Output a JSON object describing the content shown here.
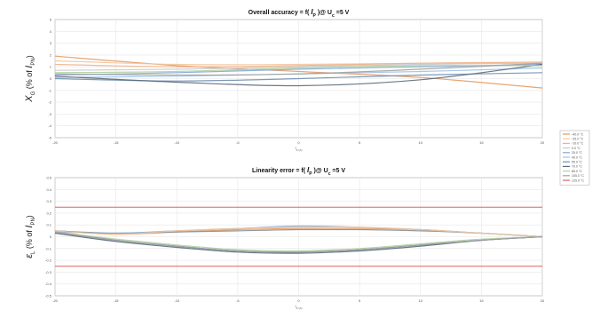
{
  "chart_data": [
    {
      "type": "line",
      "title": "Overall accuracy = f( I_P )@ U_c =5 V",
      "title_parts": {
        "pre": "Overall accuracy = f( ",
        "sym": "I",
        "sub": "P",
        "mid": " )@ U",
        "sub2": "c",
        "post": " =5 V"
      },
      "ylabel": {
        "sym": "X",
        "sub": "G",
        "text": " (% of ",
        "sym2": "I",
        "sub2": "PN",
        "close": ")"
      },
      "xlabel": "I_P (A)",
      "xlim": [
        -20,
        20
      ],
      "ylim": [
        -5,
        5
      ],
      "xticks": [
        -20,
        -15,
        -10,
        -5,
        0,
        5,
        10,
        15,
        20
      ],
      "yticks": [
        -5,
        -4,
        -3,
        -2,
        -1,
        0,
        1,
        2,
        3,
        4,
        5
      ],
      "grid": true,
      "x": [
        -20,
        -10,
        0,
        10,
        20
      ],
      "series": [
        {
          "color": "#e39b62",
          "values": [
            1.9,
            1.1,
            0.6,
            0.1,
            -0.8
          ]
        },
        {
          "color": "#f2c79e",
          "values": [
            1.5,
            1.2,
            1.2,
            1.3,
            1.3
          ]
        },
        {
          "color": "#f0b08a",
          "values": [
            1.2,
            1.0,
            1.1,
            1.3,
            1.4
          ]
        },
        {
          "color": "#c9c9c9",
          "values": [
            0.7,
            0.8,
            1.0,
            1.2,
            1.3
          ]
        },
        {
          "color": "#7fa8d8",
          "values": [
            0.3,
            0.5,
            0.8,
            1.0,
            1.2
          ]
        },
        {
          "color": "#9fc2e8",
          "values": [
            0.1,
            0.2,
            0.4,
            0.6,
            0.9
          ]
        },
        {
          "color": "#6f8fb0",
          "values": [
            0.0,
            -0.2,
            0.0,
            0.3,
            0.5
          ]
        },
        {
          "color": "#5a6a7a",
          "values": [
            0.2,
            -0.3,
            -0.6,
            -0.1,
            1.2
          ]
        },
        {
          "color": "#b0cfa0",
          "values": [
            0.5,
            0.6,
            0.9,
            1.1,
            1.1
          ]
        },
        {
          "color": "#a0a0a0",
          "values": [
            0.4,
            0.3,
            0.4,
            0.8,
            1.3
          ]
        }
      ]
    },
    {
      "type": "line",
      "title": "Linearity error = f( I_P )@ U_c =5 V",
      "title_parts": {
        "pre": "Linearity error = f( ",
        "sym": "I",
        "sub": "P",
        "mid": " )@ U",
        "sub2": "c",
        "post": " =5 V"
      },
      "ylabel": {
        "sym": "ε",
        "sub": "L",
        "text": " (% of ",
        "sym2": "I",
        "sub2": "PN",
        "close": ")"
      },
      "xlabel": "I_P (A)",
      "xlim": [
        -20,
        20
      ],
      "ylim": [
        -0.5,
        0.5
      ],
      "xticks": [
        -20,
        -15,
        -10,
        -5,
        0,
        5,
        10,
        15,
        20
      ],
      "yticks": [
        -0.5,
        -0.4,
        -0.3,
        -0.2,
        -0.1,
        0,
        0.1,
        0.2,
        0.3,
        0.4,
        0.5
      ],
      "grid": true,
      "x": [
        -20,
        -15,
        -10,
        -5,
        0,
        5,
        10,
        15,
        20
      ],
      "limits": {
        "color": "#e06060",
        "values": [
          0.25,
          -0.25
        ]
      },
      "series": [
        {
          "color": "#e39b62",
          "values": [
            0.05,
            0.02,
            0.04,
            0.06,
            0.07,
            0.07,
            0.06,
            0.03,
            0.0
          ]
        },
        {
          "color": "#8c8c8c",
          "values": [
            0.05,
            0.03,
            0.04,
            0.05,
            0.06,
            0.06,
            0.05,
            0.03,
            0.0
          ]
        },
        {
          "color": "#6f8fb0",
          "values": [
            0.04,
            -0.03,
            -0.08,
            -0.12,
            -0.13,
            -0.11,
            -0.07,
            -0.03,
            0.0
          ]
        },
        {
          "color": "#7fa8d8",
          "values": [
            0.04,
            0.03,
            0.05,
            0.07,
            0.09,
            0.08,
            0.06,
            0.03,
            0.0
          ]
        },
        {
          "color": "#5a6a7a",
          "values": [
            0.03,
            -0.04,
            -0.09,
            -0.13,
            -0.14,
            -0.12,
            -0.08,
            -0.03,
            0.0
          ]
        },
        {
          "color": "#f2c79e",
          "values": [
            0.05,
            0.02,
            0.05,
            0.07,
            0.08,
            0.08,
            0.06,
            0.03,
            0.0
          ]
        },
        {
          "color": "#b0cfa0",
          "values": [
            0.04,
            -0.02,
            -0.07,
            -0.11,
            -0.12,
            -0.1,
            -0.06,
            -0.02,
            0.0
          ]
        },
        {
          "color": "#a0a0a0",
          "values": [
            0.04,
            -0.03,
            -0.08,
            -0.12,
            -0.13,
            -0.11,
            -0.07,
            -0.03,
            0.0
          ]
        }
      ]
    }
  ],
  "legend": {
    "placement": "right",
    "entries": [
      {
        "label": "-40.0 °C",
        "color": "#e39b62"
      },
      {
        "label": "-25.0 °C",
        "color": "#f2c79e"
      },
      {
        "label": "-10.0 °C",
        "color": "#f0b08a"
      },
      {
        "label": "0.0 °C",
        "color": "#c9c9c9"
      },
      {
        "label": "25.0 °C",
        "color": "#7fa8d8"
      },
      {
        "label": "40.0 °C",
        "color": "#9fc2e8"
      },
      {
        "label": "55.0 °C",
        "color": "#6f8fb0"
      },
      {
        "label": "70.0 °C",
        "color": "#5a6a7a"
      },
      {
        "label": "85.0 °C",
        "color": "#b0cfa0"
      },
      {
        "label": "105.0 °C",
        "color": "#a0a0a0"
      },
      {
        "label": "125.0 °C",
        "color": "#e06060"
      }
    ]
  }
}
